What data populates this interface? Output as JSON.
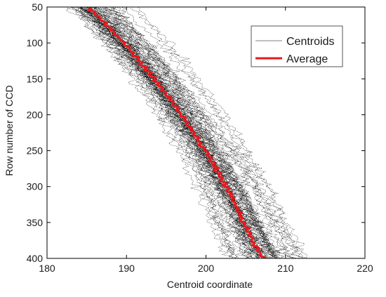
{
  "chart_data": {
    "type": "line",
    "title": "",
    "xlabel": "Centroid coordinate",
    "ylabel": "Row number of CCD",
    "xlim": [
      180,
      220
    ],
    "ylim": [
      50,
      400
    ],
    "y_inverted": true,
    "x_ticks": [
      180,
      190,
      200,
      210,
      220
    ],
    "y_ticks": [
      50,
      100,
      150,
      200,
      250,
      300,
      350,
      400
    ],
    "grid": false,
    "legend_position": "top-right",
    "colors": {
      "centroids": "#000000",
      "average": "#e8181c"
    },
    "series": [
      {
        "name": "Centroids",
        "style": "dotted-scatter-bundle",
        "spread_x": 3.2,
        "count": 60,
        "centerline": "same-as-average"
      },
      {
        "name": "Average",
        "style": "line",
        "x": [
          185.2,
          187.1,
          188.8,
          190.5,
          192.0,
          193.5,
          194.9,
          196.2,
          197.5,
          198.7,
          199.9,
          201.0,
          202.0,
          203.0,
          203.9,
          204.7,
          205.5,
          206.1,
          206.7,
          207.2
        ],
        "y": [
          50,
          70,
          90,
          110,
          130,
          150,
          170,
          190,
          210,
          230,
          250,
          270,
          290,
          310,
          330,
          350,
          365,
          380,
          392,
          400
        ]
      }
    ]
  }
}
